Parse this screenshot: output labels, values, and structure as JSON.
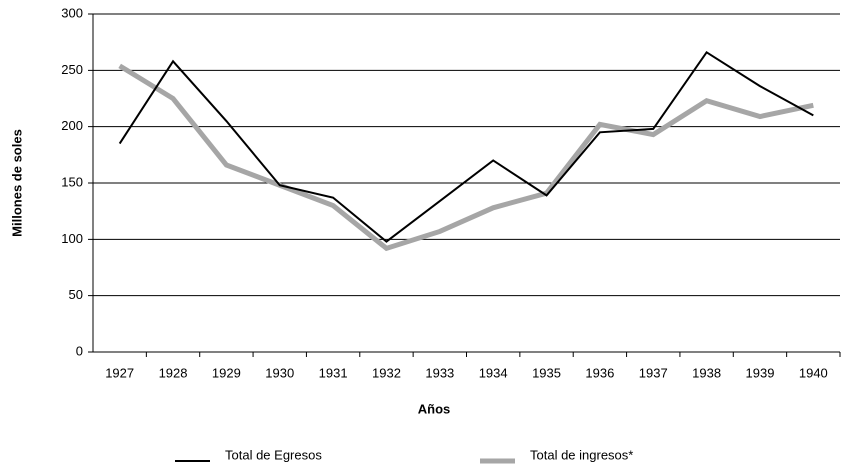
{
  "chart_data": {
    "type": "line",
    "x_label": "Años",
    "y_label": "Millones de soles",
    "categories": [
      "1927",
      "1928",
      "1929",
      "1930",
      "1931",
      "1932",
      "1933",
      "1934",
      "1935",
      "1936",
      "1937",
      "1938",
      "1939",
      "1940"
    ],
    "series": [
      {
        "name": "Total de Egresos",
        "color": "#000000",
        "values": [
          185,
          258,
          205,
          148,
          137,
          98,
          134,
          170,
          139,
          195,
          198,
          266,
          236,
          210
        ]
      },
      {
        "name": "Total de ingresos*",
        "color": "#a6a6a6",
        "values": [
          254,
          225,
          166,
          148,
          130,
          92,
          107,
          128,
          141,
          202,
          193,
          223,
          209,
          219
        ]
      }
    ],
    "ylim": [
      0,
      300
    ],
    "yticks": [
      0,
      50,
      100,
      150,
      200,
      250,
      300
    ],
    "grid": true
  }
}
